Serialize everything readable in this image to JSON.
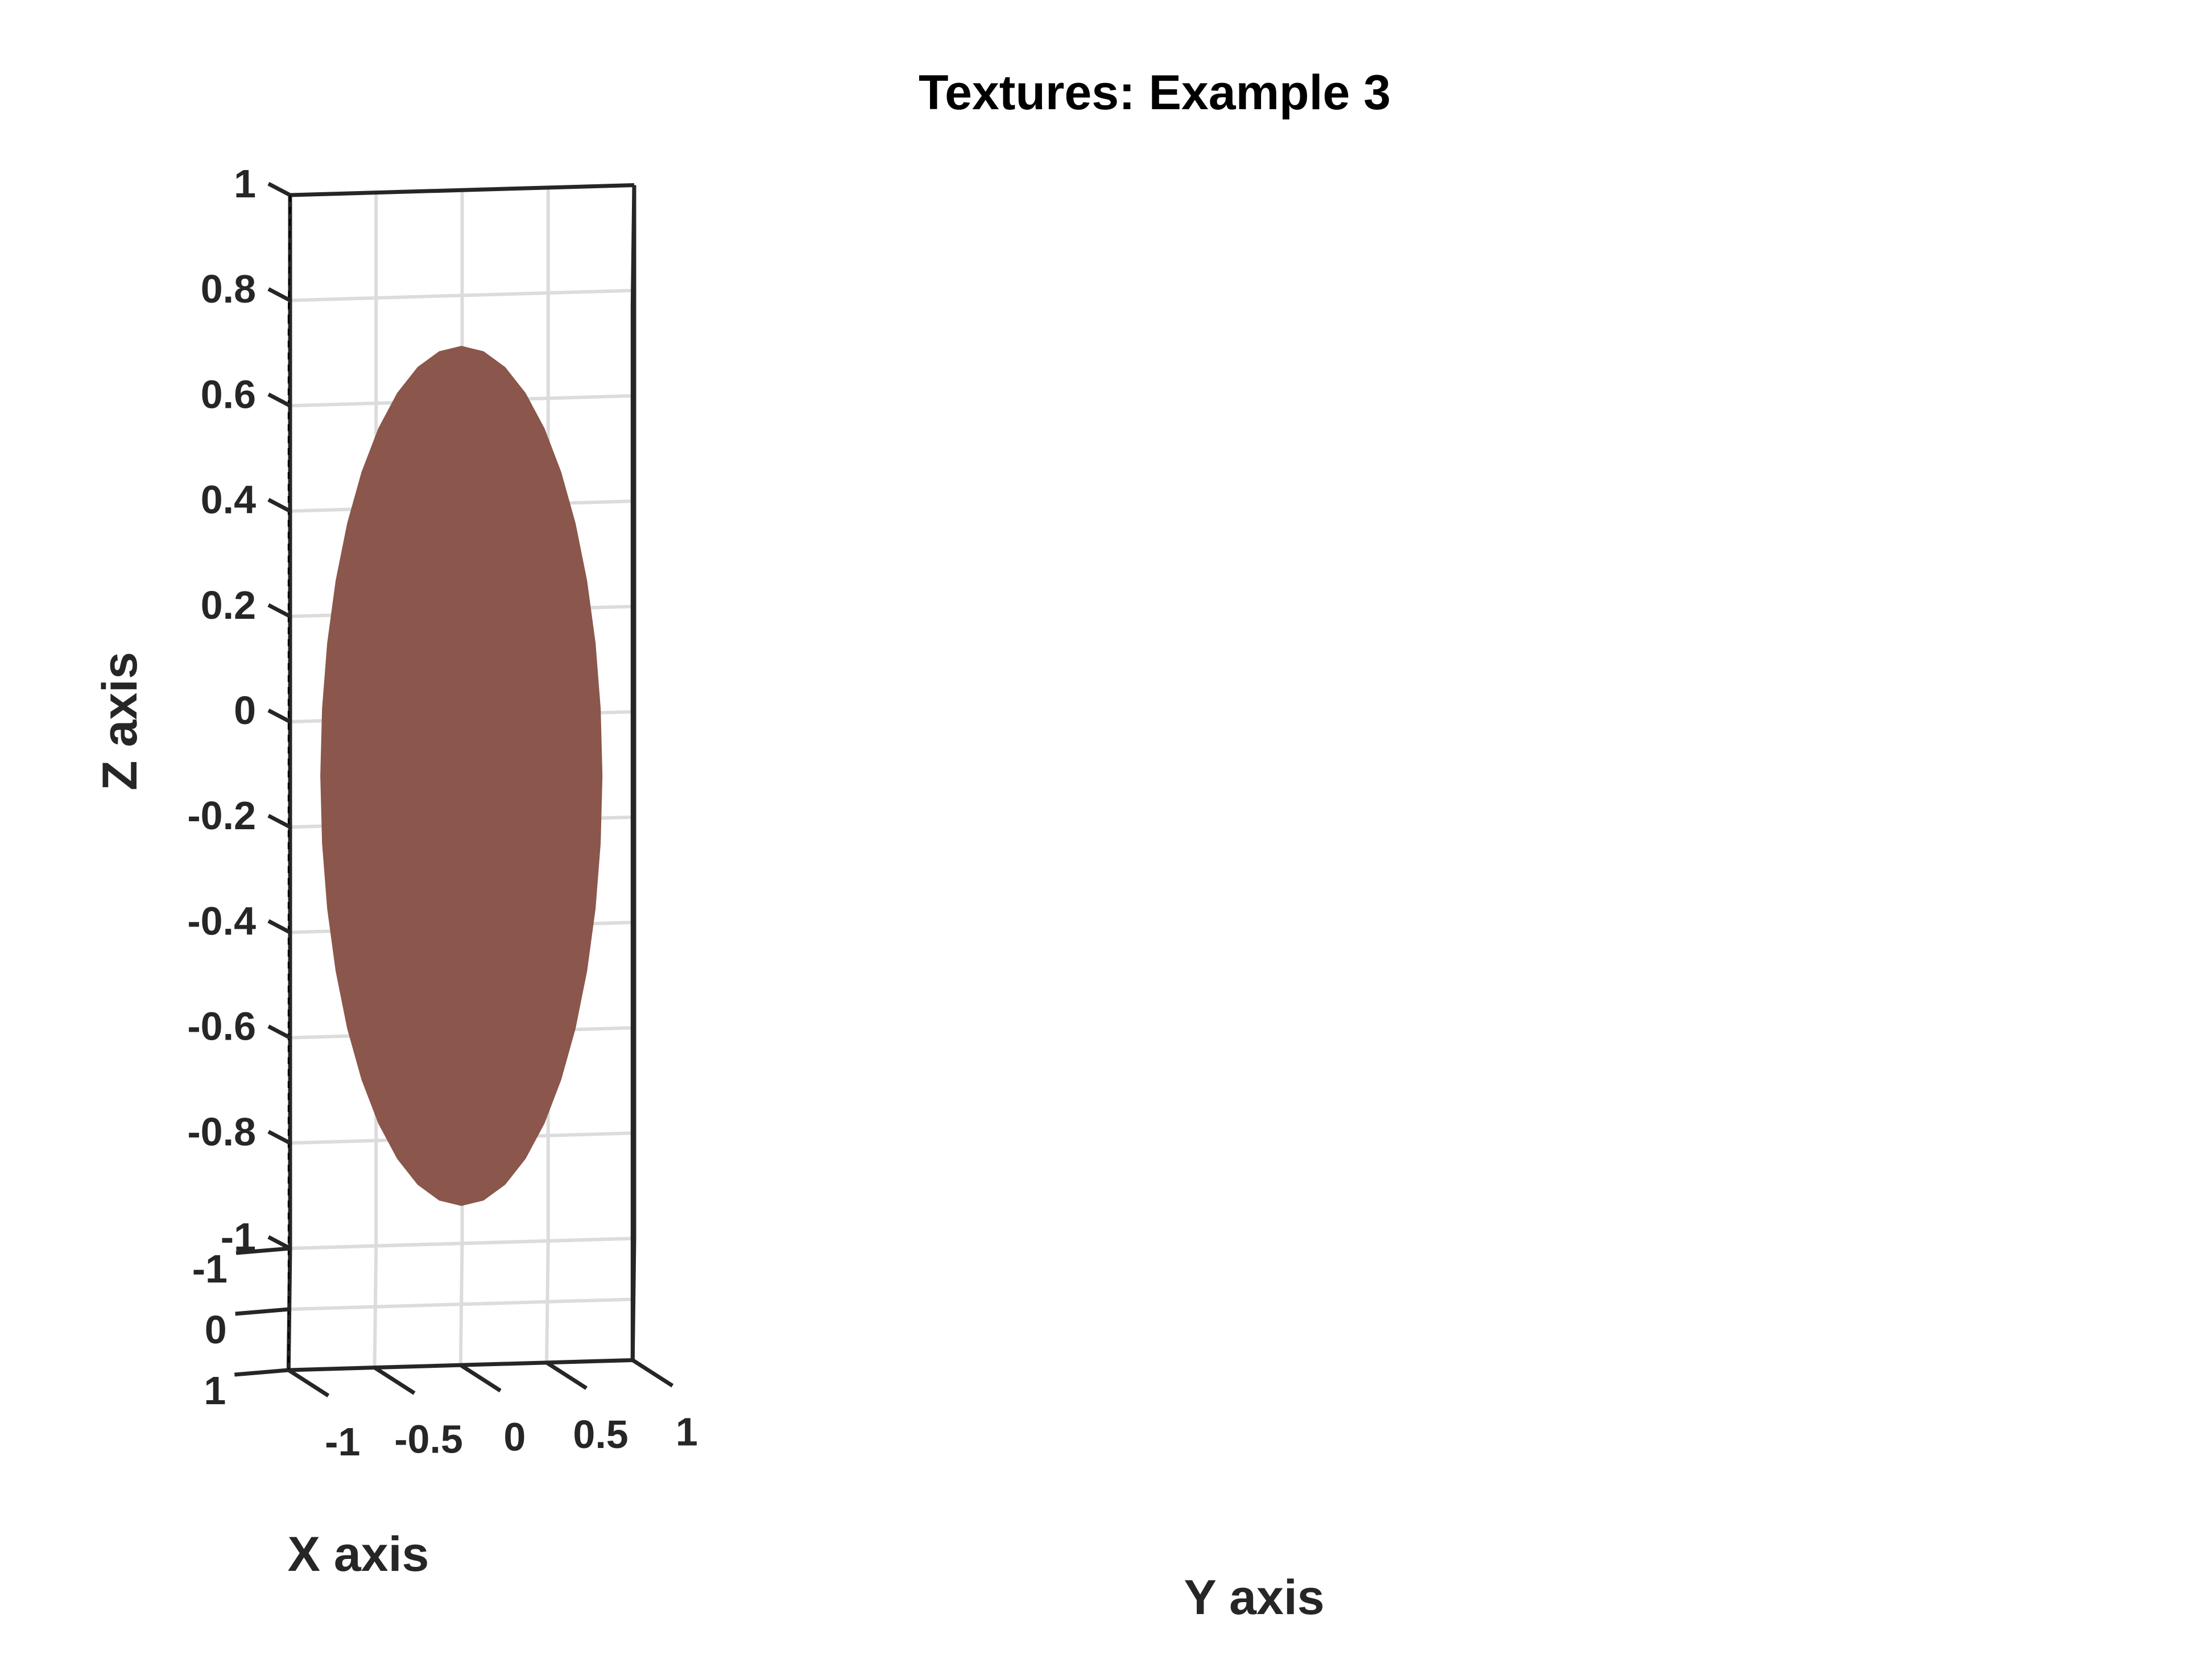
{
  "chart_data": {
    "type": "surface",
    "title": "Textures: Example 3",
    "xlabel": "X axis",
    "ylabel": "Y axis",
    "zlabel": "Z axis",
    "xlim": [
      -1,
      1
    ],
    "ylim": [
      -1,
      1
    ],
    "zlim": [
      -1,
      1
    ],
    "x_ticks": [
      {
        "value": -1,
        "label": "-1"
      },
      {
        "value": 0,
        "label": "0"
      },
      {
        "value": 1,
        "label": "1"
      }
    ],
    "y_ticks": [
      {
        "value": -1,
        "label": "-1"
      },
      {
        "value": -0.5,
        "label": "-0.5"
      },
      {
        "value": 0,
        "label": "0"
      },
      {
        "value": 0.5,
        "label": "0.5"
      },
      {
        "value": 1,
        "label": "1"
      }
    ],
    "z_ticks": [
      {
        "value": 1,
        "label": "1"
      },
      {
        "value": 0.8,
        "label": "0.8"
      },
      {
        "value": 0.6,
        "label": "0.6"
      },
      {
        "value": 0.4,
        "label": "0.4"
      },
      {
        "value": 0.2,
        "label": "0.2"
      },
      {
        "value": 0,
        "label": "0"
      },
      {
        "value": -0.2,
        "label": "-0.2"
      },
      {
        "value": -0.4,
        "label": "-0.4"
      },
      {
        "value": -0.6,
        "label": "-0.6"
      },
      {
        "value": -0.8,
        "label": "-0.8"
      },
      {
        "value": -1,
        "label": "-1"
      }
    ],
    "surface": {
      "shape": "sphere",
      "center": [
        0,
        0,
        0
      ],
      "radius": 1,
      "face_color": "#8b564b"
    },
    "grid": true,
    "box": true,
    "colors": {
      "axis": "#262626",
      "grid": "#dcdcdc",
      "surface": "#8b564b"
    }
  }
}
